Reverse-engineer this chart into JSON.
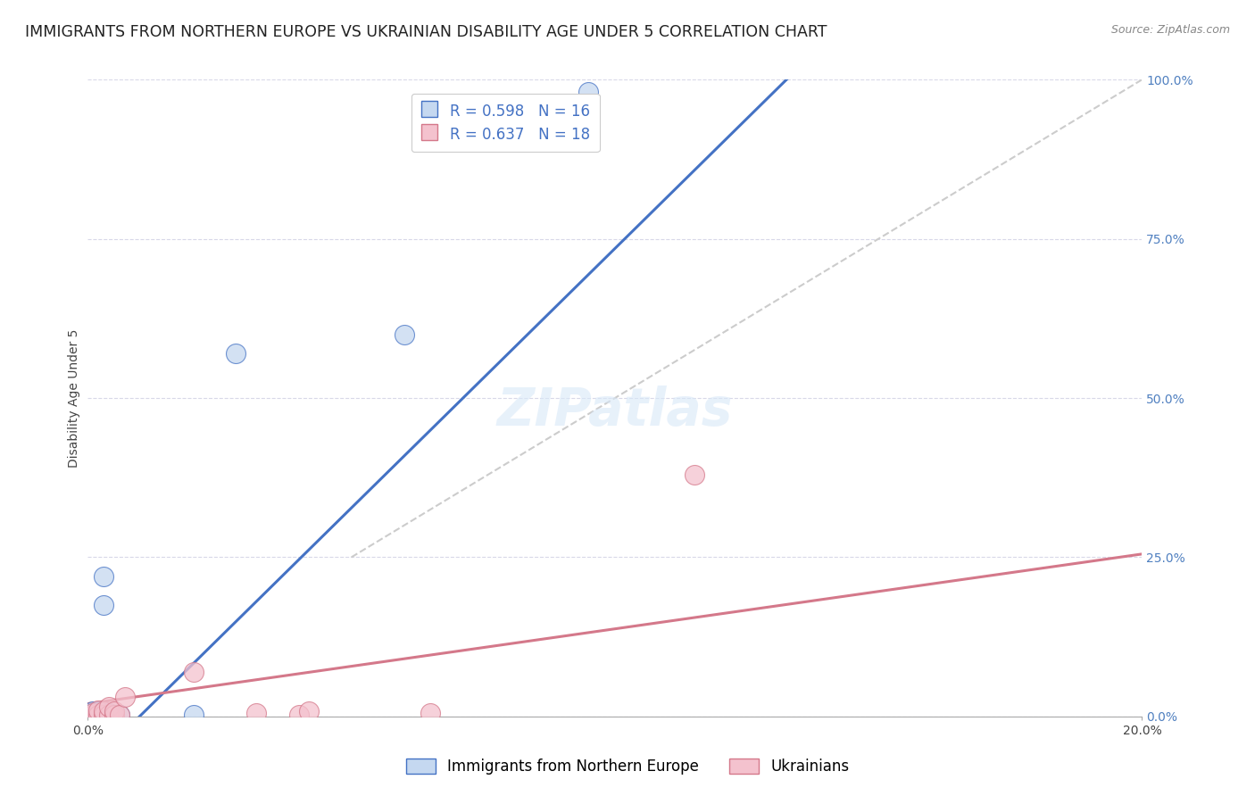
{
  "title": "IMMIGRANTS FROM NORTHERN EUROPE VS UKRAINIAN DISABILITY AGE UNDER 5 CORRELATION CHART",
  "source": "Source: ZipAtlas.com",
  "ylabel": "Disability Age Under 5",
  "xlim": [
    0,
    0.2
  ],
  "ylim": [
    0,
    1.0
  ],
  "ytick_labels": [
    "0.0%",
    "25.0%",
    "50.0%",
    "75.0%",
    "100.0%"
  ],
  "ytick_values": [
    0,
    0.25,
    0.5,
    0.75,
    1.0
  ],
  "blue_color": "#c5d8f0",
  "blue_line_color": "#4472c4",
  "pink_color": "#f4c2ce",
  "pink_line_color": "#d4788a",
  "legend_R1": "R = 0.598",
  "legend_N1": "N = 16",
  "legend_R2": "R = 0.637",
  "legend_N2": "N = 18",
  "legend_label1": "Immigrants from Northern Europe",
  "legend_label2": "Ukrainians",
  "blue_scatter_x": [
    0.001,
    0.001,
    0.001,
    0.002,
    0.002,
    0.002,
    0.003,
    0.003,
    0.003,
    0.004,
    0.004,
    0.006,
    0.02,
    0.028,
    0.06,
    0.095
  ],
  "blue_scatter_y": [
    0.002,
    0.005,
    0.008,
    0.002,
    0.005,
    0.008,
    0.002,
    0.175,
    0.22,
    0.002,
    0.005,
    0.002,
    0.002,
    0.57,
    0.6,
    0.98
  ],
  "pink_scatter_x": [
    0.001,
    0.001,
    0.002,
    0.002,
    0.003,
    0.003,
    0.004,
    0.004,
    0.005,
    0.005,
    0.006,
    0.007,
    0.02,
    0.032,
    0.04,
    0.042,
    0.065,
    0.115
  ],
  "pink_scatter_y": [
    0.002,
    0.005,
    0.002,
    0.01,
    0.002,
    0.008,
    0.002,
    0.015,
    0.002,
    0.008,
    0.002,
    0.03,
    0.07,
    0.005,
    0.002,
    0.008,
    0.005,
    0.38
  ],
  "blue_line_x": [
    0.0,
    0.135
  ],
  "blue_line_y": [
    -0.08,
    1.02
  ],
  "pink_line_x": [
    0.0,
    0.2
  ],
  "pink_line_y": [
    0.02,
    0.255
  ],
  "ref_line_x": [
    0.05,
    0.2
  ],
  "ref_line_y": [
    0.25,
    1.0
  ],
  "background_color": "#ffffff",
  "grid_color": "#d8d8e8",
  "title_fontsize": 12.5,
  "axis_label_fontsize": 10,
  "tick_fontsize": 10,
  "legend_fontsize": 12,
  "right_ytick_color": "#5080c0"
}
